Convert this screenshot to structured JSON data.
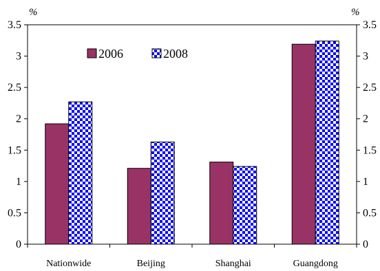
{
  "chart_data": {
    "type": "bar",
    "categories": [
      "Nationwide",
      "Beijing",
      "Shanghai",
      "Guangdong"
    ],
    "series": [
      {
        "name": "2006",
        "values": [
          1.92,
          1.21,
          1.31,
          3.19
        ]
      },
      {
        "name": "2008",
        "values": [
          2.27,
          1.63,
          1.24,
          3.24
        ]
      }
    ],
    "ylim": [
      0,
      3.5
    ],
    "yticks": [
      "0",
      "0.5",
      "1",
      "1.5",
      "2",
      "2.5",
      "3",
      "3.5"
    ],
    "y_unit_left": "%",
    "y_unit_right": "%",
    "title": "",
    "xlabel": "",
    "ylabel": "",
    "grid": false,
    "legend_position": "top-left",
    "colors": {
      "2006": "#993366",
      "2008_pattern_fg": "#0000ff",
      "2008_pattern_bg": "#ffffff"
    }
  }
}
